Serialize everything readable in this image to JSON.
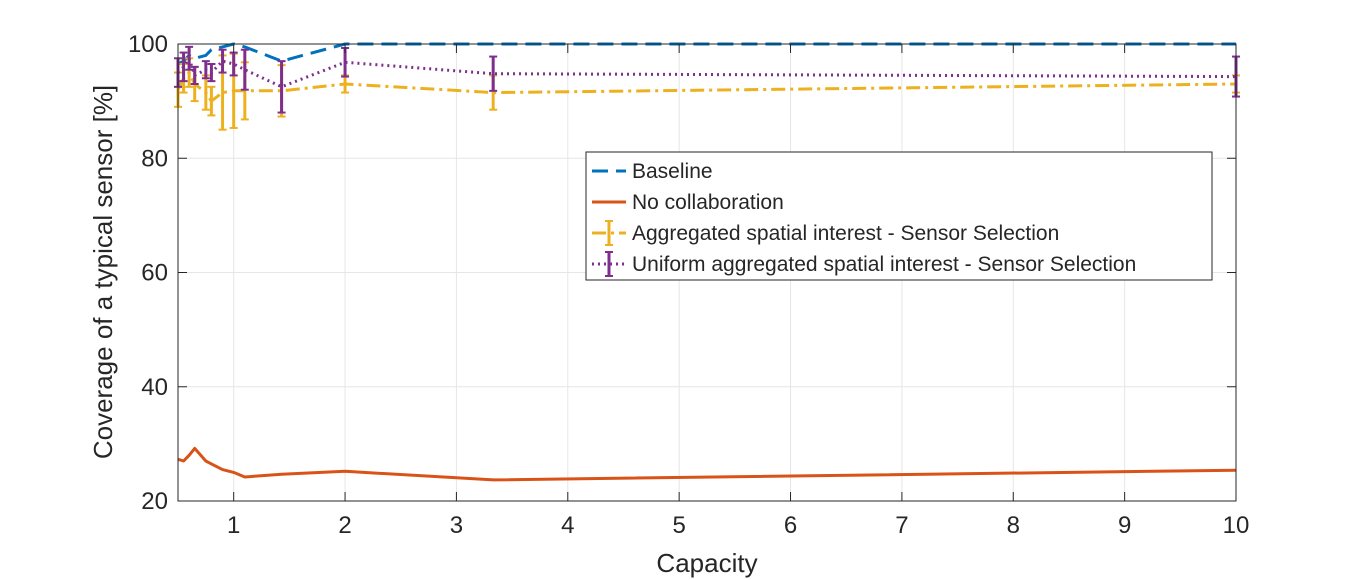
{
  "chart_data": {
    "type": "line",
    "title": "",
    "xlabel": "Capacity",
    "ylabel": "Coverage of a typical sensor [%]",
    "xlim": [
      0.5,
      10
    ],
    "ylim": [
      20,
      100
    ],
    "xticks": [
      1,
      2,
      3,
      4,
      5,
      6,
      7,
      8,
      9,
      10
    ],
    "yticks": [
      20,
      40,
      60,
      80,
      100
    ],
    "grid": true,
    "legend_position": "center-right",
    "series": [
      {
        "name": "Baseline",
        "style": "dashed",
        "color": "#0072bd",
        "x": [
          0.5,
          0.55,
          0.6,
          0.65,
          0.75,
          0.8,
          0.9,
          1.0,
          1.1,
          1.43,
          2.0,
          3.33,
          10
        ],
        "y": [
          96.5,
          97.0,
          98.0,
          97.5,
          98.0,
          99.0,
          99.5,
          100,
          99.5,
          97.0,
          100,
          100,
          100
        ]
      },
      {
        "name": "No collaboration",
        "style": "solid",
        "color": "#d95319",
        "x": [
          0.5,
          0.55,
          0.6,
          0.65,
          0.75,
          0.8,
          0.9,
          1.0,
          1.1,
          1.43,
          2.0,
          3.33,
          10
        ],
        "y": [
          27.3,
          27.0,
          28.0,
          29.2,
          27.0,
          26.5,
          25.5,
          25.0,
          24.2,
          24.7,
          25.2,
          23.7,
          25.4
        ]
      },
      {
        "name": "Aggregated spatial interest - Sensor Selection",
        "style": "dashdot",
        "color": "#edb120",
        "x": [
          0.5,
          0.55,
          0.6,
          0.65,
          0.75,
          0.8,
          0.9,
          1.0,
          1.1,
          1.43,
          2.0,
          3.33,
          10
        ],
        "y": [
          92.0,
          94.0,
          95.0,
          93.0,
          91.5,
          90.0,
          91.5,
          91.8,
          91.8,
          91.8,
          93.0,
          91.5,
          93.0
        ],
        "err": [
          3,
          2.5,
          2.5,
          3,
          3,
          2.5,
          6.5,
          6.5,
          5,
          4.5,
          1.5,
          3,
          1.5
        ]
      },
      {
        "name": "Uniform aggregated spatial interest - Sensor Selection",
        "style": "dotted",
        "color": "#7e2f8e",
        "x": [
          0.5,
          0.55,
          0.6,
          0.65,
          0.75,
          0.8,
          0.9,
          1.0,
          1.1,
          1.43,
          2.0,
          3.33,
          10
        ],
        "y": [
          95.0,
          96.0,
          97.5,
          94.5,
          95.5,
          95.0,
          97.0,
          96.5,
          95.5,
          92.5,
          96.8,
          94.8,
          94.3
        ],
        "err": [
          2.5,
          2.5,
          2,
          1.5,
          1.5,
          1.5,
          2,
          2,
          3.5,
          4.5,
          2.5,
          3,
          3.5
        ]
      }
    ]
  }
}
